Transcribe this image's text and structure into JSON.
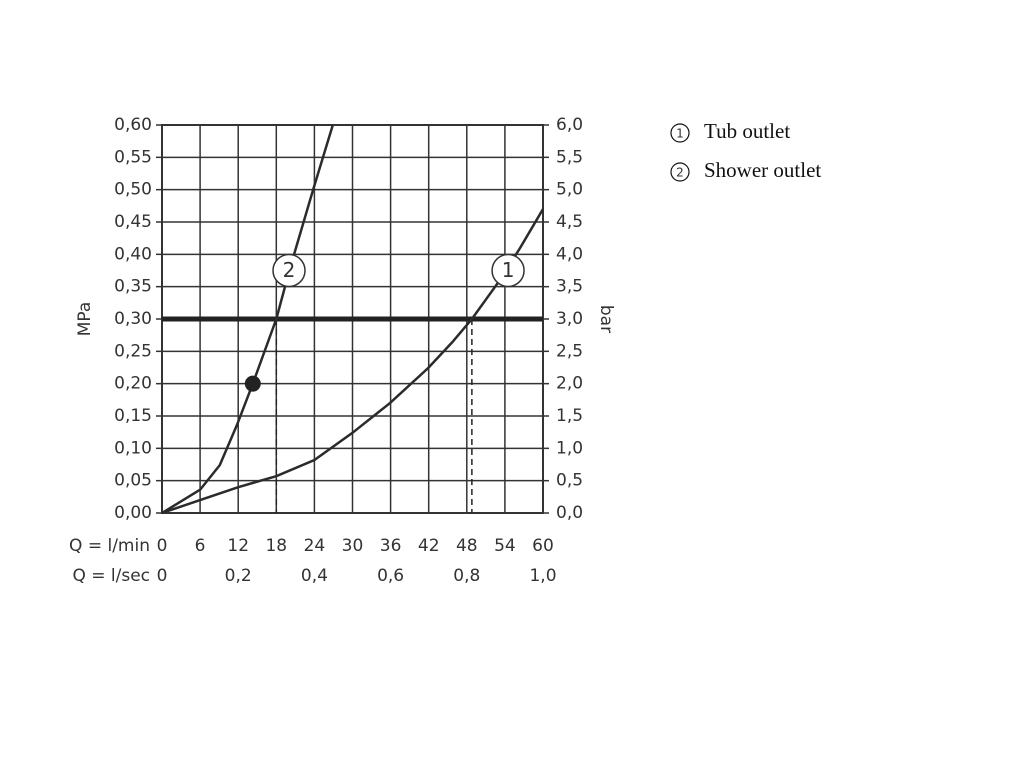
{
  "chart_data": {
    "type": "line",
    "xlabel": "Q = l/min",
    "x2label": "Q = l/sec",
    "ylabel": "MPa",
    "y2label": "bar",
    "xlim": [
      0,
      60
    ],
    "xticks": [
      0,
      6,
      12,
      18,
      24,
      30,
      36,
      42,
      48,
      54,
      60
    ],
    "x2lim": [
      0,
      1
    ],
    "x2ticks": [
      0,
      {
        "value": 0.2,
        "label": "0,2"
      },
      {
        "value": 0.4,
        "label": "0,4"
      },
      {
        "value": 0.6,
        "label": "0,6"
      },
      {
        "value": 0.8,
        "label": "0,8"
      },
      {
        "value": 1.0,
        "label": "1,0"
      }
    ],
    "ylim": [
      0,
      0.6
    ],
    "yticks": [
      {
        "value": 0,
        "label": "0,00"
      },
      {
        "value": 0.05,
        "label": "0,05"
      },
      {
        "value": 0.1,
        "label": "0,10"
      },
      {
        "value": 0.15,
        "label": "0,15"
      },
      {
        "value": 0.2,
        "label": "0,20"
      },
      {
        "value": 0.25,
        "label": "0,25"
      },
      {
        "value": 0.3,
        "label": "0,30"
      },
      {
        "value": 0.35,
        "label": "0,35"
      },
      {
        "value": 0.4,
        "label": "0,40"
      },
      {
        "value": 0.45,
        "label": "0,45"
      },
      {
        "value": 0.5,
        "label": "0,50"
      },
      {
        "value": 0.55,
        "label": "0,55"
      },
      {
        "value": 0.6,
        "label": "0,60"
      }
    ],
    "y2lim": [
      0,
      6
    ],
    "y2ticks": [
      {
        "value": 0,
        "label": "0,0"
      },
      {
        "value": 0.5,
        "label": "0,5"
      },
      {
        "value": 1,
        "label": "1,0"
      },
      {
        "value": 1.5,
        "label": "1,5"
      },
      {
        "value": 2,
        "label": "2,0"
      },
      {
        "value": 2.5,
        "label": "2,5"
      },
      {
        "value": 3,
        "label": "3,0"
      },
      {
        "value": 3.5,
        "label": "3,5"
      },
      {
        "value": 4,
        "label": "4,0"
      },
      {
        "value": 4.5,
        "label": "4,5"
      },
      {
        "value": 5,
        "label": "5,0"
      },
      {
        "value": 5.5,
        "label": "5,5"
      },
      {
        "value": 6,
        "label": "6,0"
      }
    ],
    "grid": true,
    "color": "#2b2b2b",
    "series": [
      {
        "name": "Tub outlet",
        "label": "1",
        "label_at": [
          54.5,
          0.375
        ],
        "x": [
          0,
          6,
          12,
          18,
          24,
          30,
          35.9,
          41.9,
          45.7,
          48.8,
          53.2,
          56.4,
          60
        ],
        "values": [
          0,
          0.02,
          0.04,
          0.057,
          0.082,
          0.124,
          0.17,
          0.224,
          0.264,
          0.3,
          0.36,
          0.41,
          0.47
        ]
      },
      {
        "name": "Shower outlet",
        "label": "2",
        "label_at": [
          20,
          0.375
        ],
        "x": [
          0,
          6,
          9.1,
          11.8,
          14.3,
          18,
          20.2,
          23.8,
          26.9
        ],
        "values": [
          0,
          0.036,
          0.074,
          0.136,
          0.2,
          0.3,
          0.38,
          0.5,
          0.6
        ]
      }
    ],
    "point": {
      "x": 14.3,
      "y": 0.2
    },
    "hline": 0.3,
    "vlines": [
      18,
      48.8
    ]
  }
}
